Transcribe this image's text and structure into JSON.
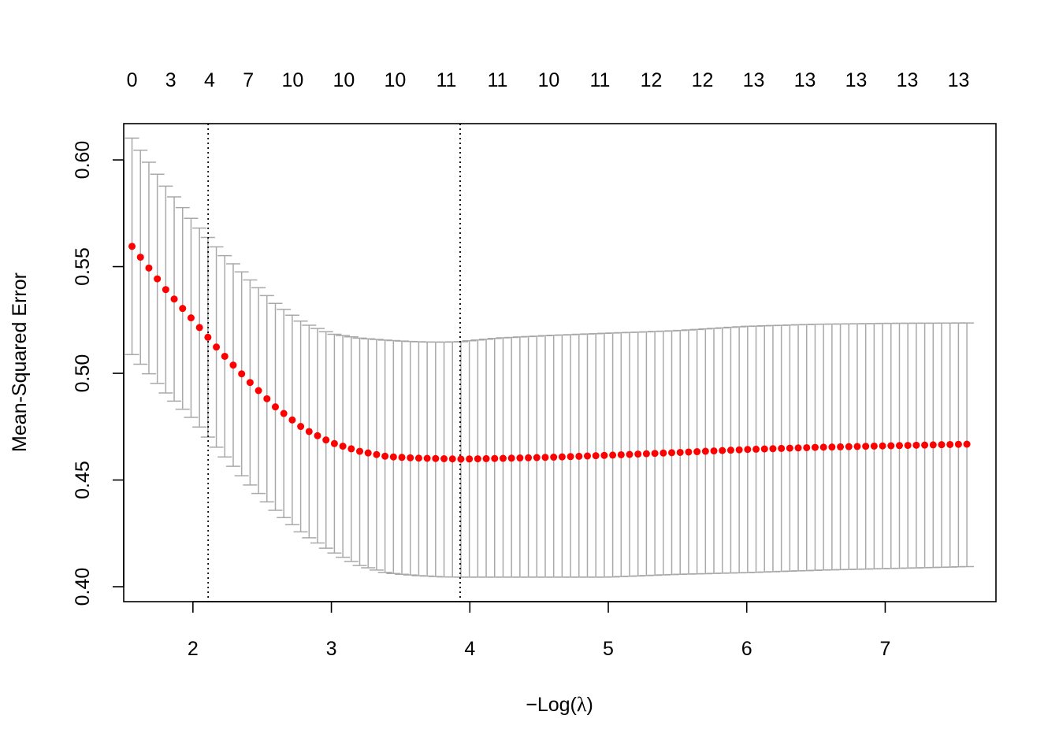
{
  "chart_data": {
    "type": "scatter",
    "title": "",
    "xlabel_parts": [
      "−",
      "Log(",
      "λ",
      ")"
    ],
    "ylabel": "Mean-Squared Error",
    "xlim": [
      1.5,
      7.8
    ],
    "ylim": [
      0.393,
      0.617
    ],
    "x_ticks": [
      2,
      3,
      4,
      5,
      6,
      7
    ],
    "y_ticks": [
      "0.40",
      "0.45",
      "0.50",
      "0.55",
      "0.60"
    ],
    "top_axis": {
      "x": [
        1.56,
        1.84,
        2.12,
        2.4,
        2.72,
        3.09,
        3.46,
        3.83,
        4.2,
        4.57,
        4.94,
        5.31,
        5.68,
        6.05,
        6.42,
        6.79,
        7.16,
        7.53
      ],
      "labels": [
        "0",
        "3",
        "4",
        "7",
        "10",
        "10",
        "10",
        "11",
        "11",
        "10",
        "11",
        "12",
        "12",
        "13",
        "13",
        "13",
        "13",
        "13"
      ]
    },
    "vlines": [
      2.11,
      3.93
    ],
    "series": [
      {
        "type": "points_with_error_bars",
        "color": "#FF0000",
        "error_bar_color": "#A9A9A9",
        "x_range": [
          1.56,
          7.59
        ],
        "n_points": 100,
        "mean_curve": {
          "x": [
            1.56,
            1.8,
            2.0,
            2.2,
            2.4,
            2.6,
            2.8,
            3.0,
            3.2,
            3.4,
            3.6,
            3.8,
            3.93,
            4.2,
            4.6,
            5.0,
            5.5,
            6.0,
            6.5,
            7.0,
            7.59
          ],
          "y": [
            0.5595,
            0.5395,
            0.525,
            0.51,
            0.4965,
            0.484,
            0.474,
            0.4675,
            0.4635,
            0.461,
            0.4603,
            0.46,
            0.4598,
            0.4601,
            0.4607,
            0.4616,
            0.4629,
            0.4643,
            0.4653,
            0.466,
            0.4668
          ]
        },
        "upper_curve": {
          "x": [
            1.56,
            1.8,
            2.0,
            2.2,
            2.4,
            2.6,
            2.8,
            3.0,
            3.2,
            3.4,
            3.6,
            3.8,
            3.93,
            4.2,
            4.6,
            5.0,
            5.5,
            6.0,
            6.5,
            7.0,
            7.59
          ],
          "y": [
            0.6102,
            0.588,
            0.5715,
            0.557,
            0.5445,
            0.5325,
            0.5235,
            0.5185,
            0.5165,
            0.5155,
            0.5148,
            0.5146,
            0.5148,
            0.5165,
            0.5178,
            0.5188,
            0.52,
            0.522,
            0.523,
            0.5234,
            0.5236
          ]
        },
        "lower_curve": {
          "x": [
            1.56,
            1.8,
            2.0,
            2.2,
            2.4,
            2.6,
            2.8,
            3.0,
            3.2,
            3.4,
            3.6,
            3.8,
            3.93,
            4.2,
            4.6,
            5.0,
            5.5,
            6.0,
            6.5,
            7.0,
            7.59
          ],
          "y": [
            0.5088,
            0.491,
            0.4785,
            0.463,
            0.4485,
            0.4355,
            0.4245,
            0.4165,
            0.41,
            0.4065,
            0.4053,
            0.4046,
            0.4045,
            0.4045,
            0.4045,
            0.4045,
            0.4058,
            0.4066,
            0.4077,
            0.4085,
            0.4094
          ]
        }
      }
    ],
    "grid": false,
    "legend": "none"
  }
}
